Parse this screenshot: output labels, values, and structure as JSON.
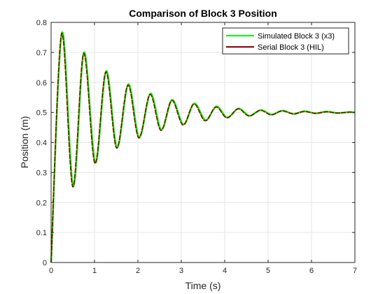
{
  "chart_data": {
    "type": "line",
    "title": "Comparison of Block 3 Position",
    "xlabel": "Time (s)",
    "ylabel": "Position (m)",
    "xlim": [
      0,
      7
    ],
    "ylim": [
      0,
      0.8
    ],
    "xticks": [
      "0",
      "1",
      "2",
      "3",
      "4",
      "5",
      "6",
      "7"
    ],
    "yticks": [
      "0",
      "0.1",
      "0.2",
      "0.3",
      "0.4",
      "0.5",
      "0.6",
      "0.7",
      "0.8"
    ],
    "grid": true,
    "legend_position": "top-right",
    "series": [
      {
        "name": "Simulated Block 3 (x3)",
        "color": "#00ff00",
        "x": [
          0,
          0.25,
          0.51,
          0.76,
          1.02,
          1.27,
          1.52,
          1.78,
          2.03,
          2.29,
          2.54,
          2.79,
          3.05,
          3.3,
          3.56,
          3.81,
          4.06,
          4.32,
          4.57,
          4.83,
          5.08,
          5.33,
          5.59,
          5.84,
          6.1,
          6.35,
          6.6,
          6.86,
          7.0
        ],
        "y": [
          0.0,
          0.765,
          0.255,
          0.7,
          0.333,
          0.638,
          0.384,
          0.594,
          0.418,
          0.563,
          0.443,
          0.542,
          0.46,
          0.53,
          0.474,
          0.52,
          0.483,
          0.513,
          0.489,
          0.508,
          0.493,
          0.506,
          0.495,
          0.504,
          0.497,
          0.503,
          0.498,
          0.501,
          0.5
        ]
      },
      {
        "name": "Serial Block 3 (HIL)",
        "color": "#8b0000",
        "x": [
          0,
          0.24,
          0.5,
          0.75,
          1.01,
          1.26,
          1.51,
          1.77,
          2.02,
          2.28,
          2.53,
          2.78,
          3.04,
          3.29,
          3.55,
          3.8,
          4.05,
          4.31,
          4.56,
          4.82,
          5.07,
          5.32,
          5.58,
          5.83,
          6.09,
          6.34,
          6.59,
          6.85,
          7.0
        ],
        "y": [
          0.0,
          0.762,
          0.252,
          0.697,
          0.33,
          0.635,
          0.381,
          0.591,
          0.415,
          0.56,
          0.44,
          0.54,
          0.458,
          0.528,
          0.472,
          0.518,
          0.482,
          0.512,
          0.488,
          0.507,
          0.492,
          0.505,
          0.495,
          0.503,
          0.497,
          0.502,
          0.498,
          0.501,
          0.5
        ]
      }
    ]
  }
}
